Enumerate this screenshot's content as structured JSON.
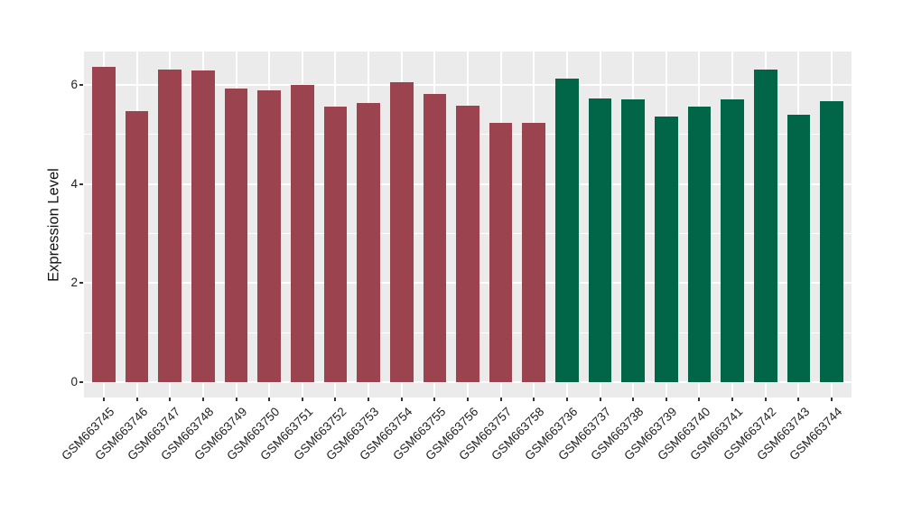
{
  "chart_data": {
    "type": "bar",
    "title": "",
    "xlabel": "",
    "ylabel": "Expression Level",
    "ylim": [
      0,
      6.67
    ],
    "yticks": [
      0,
      2,
      4,
      6
    ],
    "yticks_minor": [
      1,
      3,
      5
    ],
    "grid": true,
    "legend": "none",
    "panel_background": "#EBEBEB",
    "grid_color": "#FFFFFF",
    "tick_mark_color": "#333333",
    "axis_text_color": "#1F1F1F",
    "groups": [
      {
        "color": "#9B4450",
        "categories": [
          "GSM663745",
          "GSM663746",
          "GSM663747",
          "GSM663748",
          "GSM663749",
          "GSM663750",
          "GSM663751",
          "GSM663752",
          "GSM663753",
          "GSM663754",
          "GSM663755",
          "GSM663756",
          "GSM663757",
          "GSM663758"
        ],
        "values": [
          6.36,
          5.47,
          6.31,
          6.29,
          5.93,
          5.89,
          6.0,
          5.57,
          5.63,
          6.05,
          5.82,
          5.59,
          5.23,
          5.24
        ]
      },
      {
        "color": "#016648",
        "categories": [
          "GSM663736",
          "GSM663737",
          "GSM663738",
          "GSM663739",
          "GSM663740",
          "GSM663741",
          "GSM663742",
          "GSM663743",
          "GSM663744"
        ],
        "values": [
          6.12,
          5.72,
          5.71,
          5.36,
          5.56,
          5.71,
          6.31,
          5.4,
          5.68
        ]
      }
    ]
  }
}
